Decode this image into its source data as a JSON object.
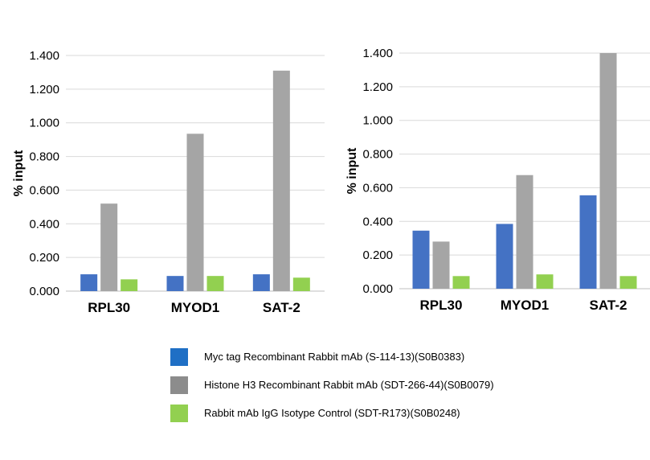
{
  "chart_data": [
    {
      "type": "bar",
      "categories": [
        "RPL30",
        "MYOD1",
        "SAT-2"
      ],
      "series": [
        {
          "name": "Myc tag Recombinant Rabbit mAb (S-114-13)(S0B0383)",
          "values": [
            0.1,
            0.09,
            0.1
          ]
        },
        {
          "name": "Histone H3 Recombinant Rabbit mAb (SDT-266-44)(S0B0079)",
          "values": [
            0.52,
            0.935,
            1.31
          ]
        },
        {
          "name": "Rabbit mAb IgG Isotype Control (SDT-R173)(S0B0248)",
          "values": [
            0.07,
            0.09,
            0.08
          ]
        }
      ],
      "ylabel": "% input",
      "ylim": [
        0,
        1.4
      ],
      "yticks": [
        "0.000",
        "0.200",
        "0.400",
        "0.600",
        "0.800",
        "1.000",
        "1.200",
        "1.400"
      ],
      "grid": true
    },
    {
      "type": "bar",
      "categories": [
        "RPL30",
        "MYOD1",
        "SAT-2"
      ],
      "series": [
        {
          "name": "Myc tag Recombinant Rabbit mAb (S-114-13)(S0B0383)",
          "values": [
            0.345,
            0.385,
            0.555
          ]
        },
        {
          "name": "Histone H3 Recombinant Rabbit mAb (SDT-266-44)(S0B0079)",
          "values": [
            0.28,
            0.675,
            1.4
          ]
        },
        {
          "name": "Rabbit mAb IgG Isotype Control (SDT-R173)(S0B0248)",
          "values": [
            0.075,
            0.085,
            0.075
          ]
        }
      ],
      "ylabel": "% input",
      "ylim": [
        0,
        1.4
      ],
      "yticks": [
        "0.000",
        "0.200",
        "0.400",
        "0.600",
        "0.800",
        "1.000",
        "1.200",
        "1.400"
      ],
      "grid": true
    }
  ],
  "legend": [
    {
      "label": "Myc tag Recombinant Rabbit mAb (S-114-13)(S0B0383)",
      "color": "#1f6fc5"
    },
    {
      "label": "Histone H3 Recombinant Rabbit mAb (SDT-266-44)(S0B0079)",
      "color": "#8c8c8c"
    },
    {
      "label": "Rabbit mAb IgG Isotype Control (SDT-R173)(S0B0248)",
      "color": "#92d050"
    }
  ],
  "series_colors": [
    "#4472c4",
    "#a5a5a5",
    "#92d050"
  ]
}
